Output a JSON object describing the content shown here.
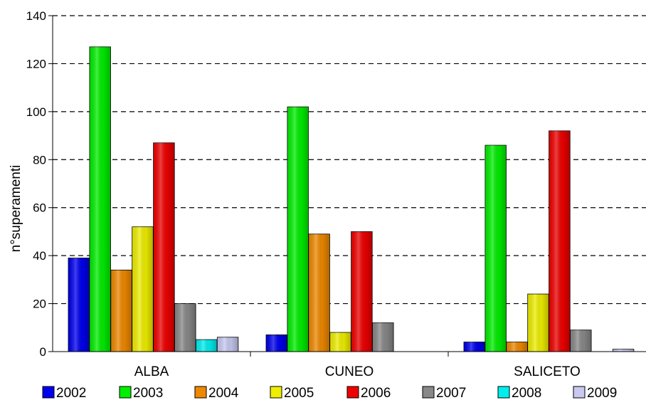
{
  "chart_data": {
    "type": "bar",
    "title": "",
    "xlabel": "",
    "ylabel": "n°superamenti",
    "ylim": [
      0,
      140
    ],
    "yticks": [
      0,
      20,
      40,
      60,
      80,
      100,
      120,
      140
    ],
    "grid": "horizontal dashed",
    "legend_position": "bottom",
    "categories": [
      "ALBA",
      "CUNEO",
      "SALICETO"
    ],
    "series": [
      {
        "name": "2002",
        "color": "#0000ee",
        "values": [
          39,
          7,
          4
        ]
      },
      {
        "name": "2003",
        "color": "#00ee00",
        "values": [
          127,
          102,
          86
        ]
      },
      {
        "name": "2004",
        "color": "#ee8800",
        "values": [
          34,
          49,
          4
        ]
      },
      {
        "name": "2005",
        "color": "#eeee00",
        "values": [
          52,
          8,
          24
        ]
      },
      {
        "name": "2006",
        "color": "#ee0000",
        "values": [
          87,
          50,
          92
        ]
      },
      {
        "name": "2007",
        "color": "#888888",
        "values": [
          20,
          12,
          9
        ]
      },
      {
        "name": "2008",
        "color": "#00eeee",
        "values": [
          5,
          0,
          0
        ]
      },
      {
        "name": "2009",
        "color": "#c8c8f0",
        "values": [
          6,
          0,
          1
        ]
      }
    ]
  }
}
